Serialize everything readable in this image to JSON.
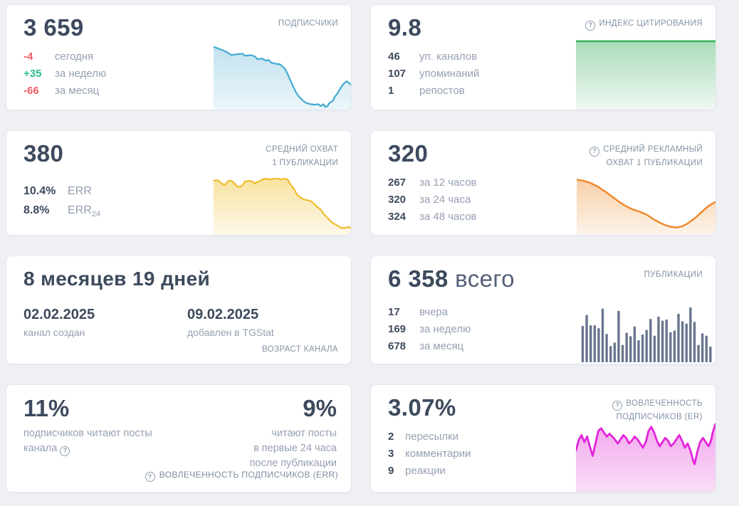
{
  "icons": {
    "help": "?"
  },
  "colors": {
    "page_bg": "#eef0f4",
    "card_bg": "#ffffff",
    "value_text": "#3d4a5d",
    "label_text": "#95a0b2",
    "header_text": "#8392a5",
    "negative": "#ef5c64",
    "positive": "#2dbe8d",
    "blue_line": "#3fa9d0",
    "green_line": "#36b35c",
    "yellow_line": "#f1bb2a",
    "orange_line": "#ee8c33",
    "magenta_line": "#e224da",
    "bars": "#66758c"
  },
  "cards": {
    "subscribers": {
      "title": "ПОДПИСЧИКИ",
      "value": "3 659",
      "stats": [
        {
          "value": "-4",
          "label": "сегодня"
        },
        {
          "value": "+35",
          "label": "за неделю"
        },
        {
          "value": "-66",
          "label": "за месяц"
        }
      ]
    },
    "citation_index": {
      "title": "ИНДЕКС ЦИТИРОВАНИЯ",
      "value": "9.8",
      "stats": [
        {
          "value": "46",
          "label": "уп. каналов"
        },
        {
          "value": "107",
          "label": "упоминаний"
        },
        {
          "value": "1",
          "label": "репостов"
        }
      ]
    },
    "avg_reach": {
      "title_line1": "СРЕДНИЙ ОХВАТ",
      "title_line2": "1 ПУБЛИКАЦИИ",
      "value": "380",
      "stats": [
        {
          "value": "10.4%",
          "label": "ERR",
          "label_sub": ""
        },
        {
          "value": "8.8%",
          "label": "ERR",
          "label_sub": "24"
        }
      ]
    },
    "avg_ad_reach": {
      "title_line1": "СРЕДНИЙ РЕКЛАМНЫЙ",
      "title_line2": "ОХВАТ 1 ПУБЛИКАЦИИ",
      "value": "320",
      "stats": [
        {
          "value": "267",
          "label": "за 12 часов"
        },
        {
          "value": "320",
          "label": "за 24 часа"
        },
        {
          "value": "324",
          "label": "за 48 часов"
        }
      ]
    },
    "channel_age": {
      "value": "8 месяцев 19 дней",
      "footer": "ВОЗРАСТ КАНАЛА",
      "dates": [
        {
          "date": "02.02.2025",
          "label": "канал создан"
        },
        {
          "date": "09.02.2025",
          "label": "добавлен в TGStat"
        }
      ]
    },
    "publications": {
      "title": "ПУБЛИКАЦИИ",
      "value": "6 358",
      "value_suffix": "всего",
      "stats": [
        {
          "value": "17",
          "label": "вчера"
        },
        {
          "value": "169",
          "label": "за неделю"
        },
        {
          "value": "678",
          "label": "за месяц"
        }
      ]
    },
    "err": {
      "left_value": "11%",
      "left_label_line1": "подписчиков читают посты",
      "left_label_line2": "канала",
      "right_value": "9%",
      "right_label_line1": "читают посты",
      "right_label_line2": "в первые 24 часа",
      "right_label_line3": "после публикации",
      "footer": "ВОВЛЕЧЕННОСТЬ ПОДПИСЧИКОВ (ERR)"
    },
    "er": {
      "title_line1": "ВОВЛЕЧЕННОСТЬ",
      "title_line2": "ПОДПИСЧИКОВ (ER)",
      "value": "3.07%",
      "stats": [
        {
          "value": "2",
          "label": "пересылки"
        },
        {
          "value": "3",
          "label": "комментарии"
        },
        {
          "value": "9",
          "label": "реакции"
        }
      ]
    }
  },
  "chart_data": {
    "subscribers": {
      "type": "area",
      "color": "#3fa9d0",
      "stroke": 2.2,
      "fill_from": "#c2e2f0",
      "fill_to": "#ecf6fa",
      "points": [
        [
          0,
          9
        ],
        [
          4,
          12
        ],
        [
          9,
          16
        ],
        [
          13,
          21
        ],
        [
          16,
          20
        ],
        [
          21,
          19
        ],
        [
          23,
          22
        ],
        [
          27,
          21
        ],
        [
          30,
          23
        ],
        [
          32,
          27
        ],
        [
          35,
          26
        ],
        [
          38,
          29
        ],
        [
          40,
          28
        ],
        [
          42,
          32
        ],
        [
          46,
          34
        ],
        [
          48,
          34
        ],
        [
          50,
          37
        ],
        [
          52,
          41
        ],
        [
          54,
          49
        ],
        [
          56,
          58
        ],
        [
          58,
          67
        ],
        [
          60,
          75
        ],
        [
          62,
          81
        ],
        [
          65,
          87
        ],
        [
          67,
          90
        ],
        [
          70,
          92
        ],
        [
          74,
          93
        ],
        [
          76,
          92
        ],
        [
          78,
          95
        ],
        [
          80,
          92
        ],
        [
          81,
          96
        ],
        [
          83,
          95
        ],
        [
          84,
          91
        ],
        [
          87,
          87
        ],
        [
          88,
          82
        ],
        [
          90,
          77
        ],
        [
          92,
          70
        ],
        [
          94,
          64
        ],
        [
          96,
          60
        ],
        [
          97,
          59
        ],
        [
          99,
          62
        ],
        [
          100,
          64
        ]
      ]
    },
    "citation_index": {
      "type": "area",
      "color": "#36b35c",
      "stroke": 2.6,
      "fill_from": "#a9dcba",
      "fill_to": "#f0f8f2",
      "points": [
        [
          0,
          2
        ],
        [
          100,
          2
        ]
      ]
    },
    "avg_reach": {
      "type": "area",
      "color": "#f1bb2a",
      "stroke": 2.2,
      "fill_from": "#f7e3a0",
      "fill_to": "#fdf8ea",
      "points": [
        [
          0,
          5
        ],
        [
          3,
          4
        ],
        [
          5,
          8
        ],
        [
          8,
          13
        ],
        [
          9,
          10
        ],
        [
          11,
          5
        ],
        [
          13,
          5
        ],
        [
          15,
          9
        ],
        [
          17,
          15
        ],
        [
          19,
          16
        ],
        [
          21,
          13
        ],
        [
          23,
          6
        ],
        [
          26,
          5
        ],
        [
          28,
          6
        ],
        [
          30,
          10
        ],
        [
          31,
          8
        ],
        [
          34,
          5
        ],
        [
          35,
          3
        ],
        [
          39,
          1
        ],
        [
          41,
          3
        ],
        [
          44,
          1
        ],
        [
          47,
          1
        ],
        [
          49,
          3
        ],
        [
          52,
          1
        ],
        [
          54,
          3
        ],
        [
          55,
          8
        ],
        [
          57,
          15
        ],
        [
          59,
          21
        ],
        [
          60,
          26
        ],
        [
          61,
          30
        ],
        [
          63,
          34
        ],
        [
          66,
          38
        ],
        [
          68,
          39
        ],
        [
          71,
          41
        ],
        [
          73,
          45
        ],
        [
          75,
          50
        ],
        [
          78,
          56
        ],
        [
          80,
          63
        ],
        [
          82,
          68
        ],
        [
          84,
          73
        ],
        [
          86,
          78
        ],
        [
          88,
          81
        ],
        [
          91,
          85
        ],
        [
          93,
          88
        ],
        [
          96,
          88
        ],
        [
          98,
          86
        ],
        [
          100,
          88
        ]
      ]
    },
    "avg_ad_reach": {
      "type": "area",
      "color": "#ee8c33",
      "stroke": 2.6,
      "fill_from": "#f7d0a8",
      "fill_to": "#fdf3ea",
      "points": [
        [
          0,
          3
        ],
        [
          5,
          5
        ],
        [
          10,
          9
        ],
        [
          15,
          15
        ],
        [
          20,
          23
        ],
        [
          25,
          32
        ],
        [
          30,
          41
        ],
        [
          35,
          49
        ],
        [
          40,
          55
        ],
        [
          45,
          59
        ],
        [
          50,
          64
        ],
        [
          55,
          72
        ],
        [
          60,
          79
        ],
        [
          65,
          84
        ],
        [
          68,
          86
        ],
        [
          72,
          87
        ],
        [
          76,
          85
        ],
        [
          80,
          80
        ],
        [
          85,
          71
        ],
        [
          90,
          60
        ],
        [
          95,
          49
        ],
        [
          100,
          42
        ]
      ]
    },
    "publications": {
      "type": "bars",
      "color": "#66758c",
      "values": [
        0.63,
        0.82,
        0.64,
        0.64,
        0.59,
        0.93,
        0.49,
        0.28,
        0.34,
        0.89,
        0.3,
        0.51,
        0.45,
        0.62,
        0.38,
        0.48,
        0.56,
        0.75,
        0.46,
        0.79,
        0.72,
        0.74,
        0.52,
        0.55,
        0.84,
        0.71,
        0.67,
        0.95,
        0.7,
        0.3,
        0.5,
        0.46,
        0.27
      ]
    },
    "er": {
      "type": "area",
      "color": "#e224da",
      "stroke": 2.8,
      "fill_from": "#f2a9ee",
      "fill_to": "#f9ddf7",
      "points": [
        [
          0,
          40
        ],
        [
          2,
          25
        ],
        [
          4,
          18
        ],
        [
          6,
          28
        ],
        [
          8,
          20
        ],
        [
          10,
          35
        ],
        [
          12,
          48
        ],
        [
          14,
          30
        ],
        [
          16,
          12
        ],
        [
          18,
          8
        ],
        [
          20,
          14
        ],
        [
          22,
          20
        ],
        [
          24,
          16
        ],
        [
          27,
          22
        ],
        [
          30,
          30
        ],
        [
          32,
          24
        ],
        [
          34,
          18
        ],
        [
          36,
          22
        ],
        [
          38,
          30
        ],
        [
          40,
          26
        ],
        [
          42,
          20
        ],
        [
          44,
          24
        ],
        [
          46,
          30
        ],
        [
          48,
          36
        ],
        [
          50,
          28
        ],
        [
          52,
          12
        ],
        [
          54,
          6
        ],
        [
          56,
          14
        ],
        [
          58,
          26
        ],
        [
          60,
          34
        ],
        [
          62,
          28
        ],
        [
          64,
          22
        ],
        [
          66,
          26
        ],
        [
          68,
          34
        ],
        [
          70,
          30
        ],
        [
          72,
          24
        ],
        [
          74,
          18
        ],
        [
          76,
          26
        ],
        [
          78,
          36
        ],
        [
          80,
          30
        ],
        [
          82,
          40
        ],
        [
          84,
          55
        ],
        [
          85,
          60
        ],
        [
          87,
          42
        ],
        [
          89,
          28
        ],
        [
          91,
          22
        ],
        [
          93,
          28
        ],
        [
          95,
          34
        ],
        [
          96,
          30
        ],
        [
          97,
          24
        ],
        [
          98,
          14
        ],
        [
          100,
          2
        ]
      ]
    }
  }
}
